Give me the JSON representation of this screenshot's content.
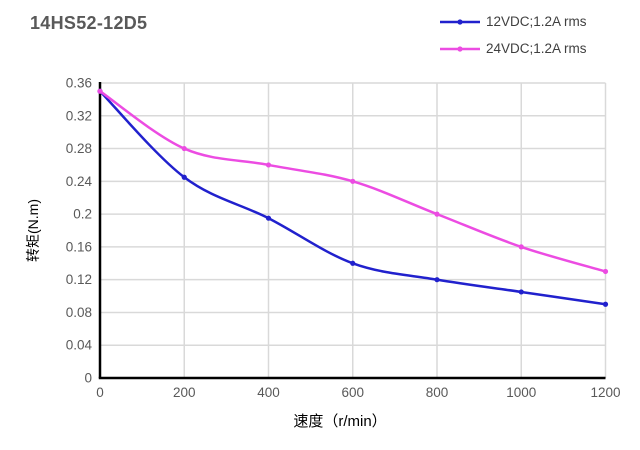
{
  "title": "14HS52-12D5",
  "chart_data": {
    "type": "line",
    "x": [
      0,
      200,
      400,
      600,
      800,
      1000,
      1200
    ],
    "series": [
      {
        "name": "12VDC;1.2A rms",
        "color": "#2121cd",
        "values": [
          0.35,
          0.245,
          0.195,
          0.14,
          0.12,
          0.105,
          0.09
        ]
      },
      {
        "name": "24VDC;1.2A rms",
        "color": "#ec4ce2",
        "values": [
          0.35,
          0.28,
          0.26,
          0.24,
          0.2,
          0.16,
          0.13
        ]
      }
    ],
    "xlabel": "速度（r/min）",
    "ylabel": "转矩(N.m)",
    "xlim": [
      0,
      1200
    ],
    "ylim": [
      0,
      0.36
    ],
    "x_tick_labels": [
      "0",
      "200",
      "400",
      "600",
      "800",
      "1000",
      "1200"
    ],
    "y_tick_labels": [
      "0",
      "0.04",
      "0.08",
      "0.12",
      "0.16",
      "0.2",
      "0.24",
      "0.28",
      "0.32",
      "0.36"
    ],
    "grid": true,
    "legend_position": "top-right",
    "colors": {
      "gridline": "#d9d9d9",
      "axis_line": "#000000",
      "tick_label": "#595959",
      "axis_title": "#000000",
      "title_text": "#595959"
    }
  }
}
